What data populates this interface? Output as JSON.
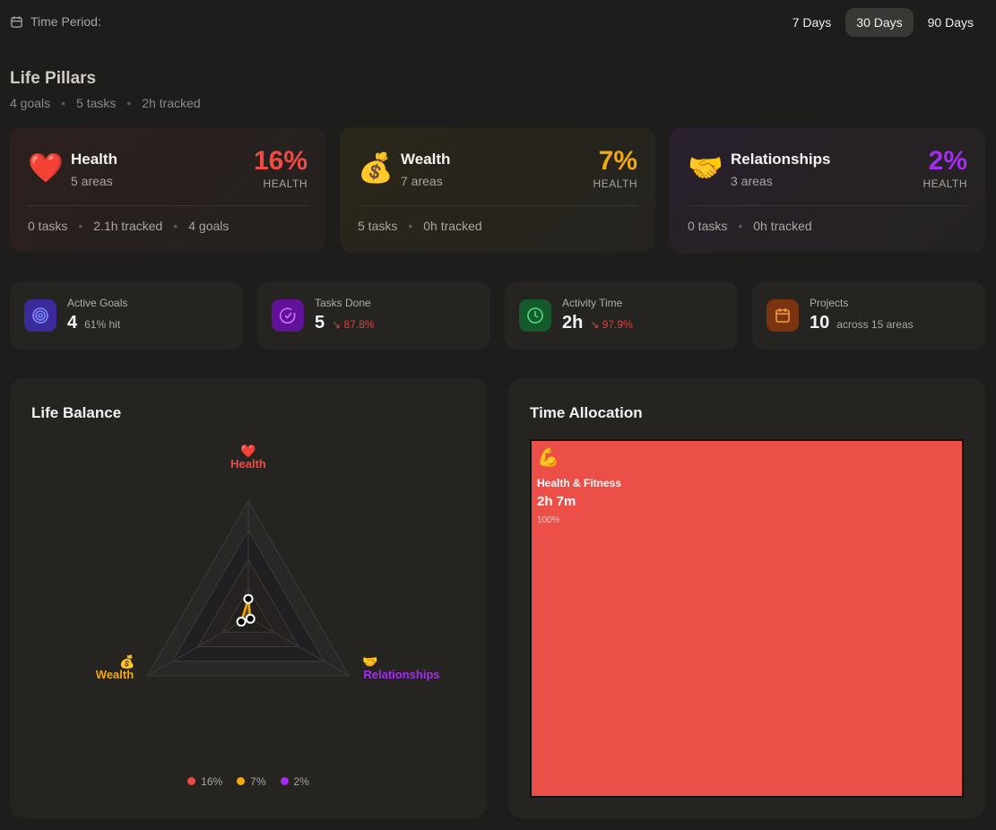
{
  "header": {
    "period_label": "Time Period:",
    "ranges": [
      "7 Days",
      "30 Days",
      "90 Days"
    ],
    "active_range": "30 Days"
  },
  "section": {
    "title": "Life Pillars",
    "summary": [
      "4 goals",
      "5 tasks",
      "2h tracked"
    ]
  },
  "pillars": [
    {
      "emoji": "❤️",
      "name": "Health",
      "areas": "5 areas",
      "pct": "16%",
      "pct_label": "HEALTH",
      "color": "#ef4b45",
      "footer": [
        "0 tasks",
        "2.1h tracked",
        "4 goals"
      ]
    },
    {
      "emoji": "💰",
      "name": "Wealth",
      "areas": "7 areas",
      "pct": "7%",
      "pct_label": "HEALTH",
      "color": "#f2a90d",
      "footer": [
        "5 tasks",
        "0h tracked"
      ]
    },
    {
      "emoji": "🤝",
      "name": "Relationships",
      "areas": "3 areas",
      "pct": "2%",
      "pct_label": "HEALTH",
      "color": "#a52cf0",
      "footer": [
        "0 tasks",
        "0h tracked"
      ]
    }
  ],
  "stats": [
    {
      "icon": "target-icon",
      "label": "Active Goals",
      "value": "4",
      "extra": "61% hit"
    },
    {
      "icon": "check-circle-icon",
      "label": "Tasks Done",
      "value": "5",
      "trend": "87.8%"
    },
    {
      "icon": "clock-icon",
      "label": "Activity Time",
      "value": "2h",
      "trend": "97.9%"
    },
    {
      "icon": "calendar-icon",
      "label": "Projects",
      "value": "10",
      "extra": "across 15 areas"
    }
  ],
  "life_balance": {
    "title": "Life Balance",
    "axes": [
      {
        "emoji": "❤️",
        "label": "Health",
        "value": 16,
        "color": "#ef4b45"
      },
      {
        "emoji": "💰",
        "label": "Wealth",
        "value": 7,
        "color": "#f2a90d"
      },
      {
        "emoji": "🤝",
        "label": "Relationships",
        "value": 2,
        "color": "#a52cf0"
      }
    ],
    "legend": [
      "16%",
      "7%",
      "2%"
    ],
    "max": 100
  },
  "time_allocation": {
    "title": "Time Allocation",
    "items": [
      {
        "emoji": "💪",
        "name": "Health & Fitness",
        "time": "2h 7m",
        "pct": "100%",
        "color": "#ec4e48"
      }
    ]
  }
}
